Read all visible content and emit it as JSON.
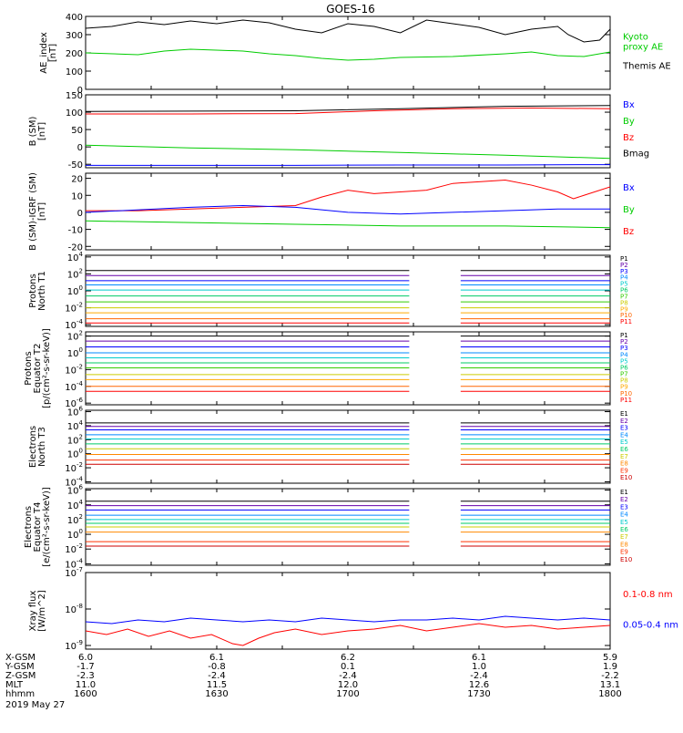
{
  "title": "GOES-16",
  "date_label": "2019 May 27",
  "ephemeris": {
    "rows": [
      {
        "label": "X-GSM",
        "values": [
          "6.0",
          "6.1",
          "6.2",
          "6.1",
          "5.9"
        ]
      },
      {
        "label": "Y-GSM",
        "values": [
          "-1.7",
          "-0.8",
          "0.1",
          "1.0",
          "1.9"
        ]
      },
      {
        "label": "Z-GSM",
        "values": [
          "-2.3",
          "-2.4",
          "-2.4",
          "-2.4",
          "-2.2"
        ]
      },
      {
        "label": "MLT",
        "values": [
          "11.0",
          "11.5",
          "12.0",
          "12.6",
          "13.1"
        ]
      },
      {
        "label": "hhmm",
        "values": [
          "1600",
          "1630",
          "1700",
          "1730",
          "1800"
        ]
      }
    ]
  },
  "chart_data": [
    {
      "type": "line",
      "ylabel": [
        "AE_index",
        "[nT]"
      ],
      "ylim": [
        0,
        400
      ],
      "yscale": "linear",
      "yticks": [
        "0",
        "100",
        "200",
        "300",
        "400"
      ],
      "legend": [
        {
          "text": "Kyoto proxy AE",
          "lines": [
            "Kyoto",
            "proxy AE"
          ],
          "color": "#00cc00"
        },
        {
          "text": "Themis AE",
          "lines": [
            "Themis AE"
          ],
          "color": "#000000"
        }
      ],
      "series": [
        {
          "name": "Themis AE",
          "color": "#000000",
          "x": [
            0,
            0.05,
            0.1,
            0.15,
            0.2,
            0.25,
            0.3,
            0.35,
            0.4,
            0.45,
            0.5,
            0.55,
            0.6,
            0.65,
            0.7,
            0.75,
            0.8,
            0.85,
            0.9,
            0.92,
            0.95,
            0.98,
            1.0
          ],
          "y": [
            335,
            345,
            370,
            355,
            375,
            360,
            380,
            365,
            330,
            310,
            360,
            345,
            310,
            380,
            360,
            340,
            300,
            330,
            345,
            300,
            260,
            270,
            330
          ]
        },
        {
          "name": "Kyoto proxy AE",
          "color": "#00cc00",
          "x": [
            0,
            0.1,
            0.15,
            0.2,
            0.3,
            0.35,
            0.4,
            0.45,
            0.5,
            0.55,
            0.6,
            0.7,
            0.8,
            0.85,
            0.9,
            0.95,
            1.0
          ],
          "y": [
            200,
            190,
            210,
            220,
            210,
            195,
            185,
            170,
            160,
            165,
            175,
            180,
            195,
            205,
            185,
            180,
            205
          ]
        }
      ]
    },
    {
      "type": "line",
      "ylabel": [
        "B (SM)",
        "[nT]"
      ],
      "ylim": [
        -60,
        150
      ],
      "yscale": "linear",
      "yticks": [
        "-50",
        "0",
        "50",
        "100",
        "150"
      ],
      "legend": [
        {
          "text": "Bx",
          "lines": [
            "Bx"
          ],
          "color": "#0000ff"
        },
        {
          "text": "By",
          "lines": [
            "By"
          ],
          "color": "#00cc00"
        },
        {
          "text": "Bz",
          "lines": [
            "Bz"
          ],
          "color": "#ff0000"
        },
        {
          "text": "Bmag",
          "lines": [
            "Bmag"
          ],
          "color": "#000000"
        }
      ],
      "series": [
        {
          "name": "Bmag",
          "color": "#000000",
          "x": [
            0,
            0.2,
            0.4,
            0.6,
            0.8,
            1.0
          ],
          "y": [
            102,
            103,
            104,
            110,
            117,
            119
          ]
        },
        {
          "name": "Bz",
          "color": "#ff0000",
          "x": [
            0,
            0.2,
            0.4,
            0.55,
            0.7,
            0.85,
            1.0
          ],
          "y": [
            95,
            95,
            96,
            104,
            110,
            112,
            110
          ]
        },
        {
          "name": "By",
          "color": "#00cc00",
          "x": [
            0,
            0.2,
            0.4,
            0.6,
            0.8,
            1.0
          ],
          "y": [
            5,
            -3,
            -8,
            -16,
            -24,
            -33
          ]
        },
        {
          "name": "Bx",
          "color": "#0000ff",
          "x": [
            0,
            0.2,
            0.4,
            0.6,
            0.8,
            1.0
          ],
          "y": [
            -53,
            -53,
            -53,
            -52,
            -52,
            -51
          ]
        }
      ]
    },
    {
      "type": "line",
      "ylabel": [
        "B (SM)-IGRF (SM)",
        "[nT]"
      ],
      "ylim": [
        -22,
        23
      ],
      "yscale": "linear",
      "yticks": [
        "-20",
        "-10",
        "0",
        "10",
        "20"
      ],
      "legend": [
        {
          "text": "Bx",
          "lines": [
            "Bx"
          ],
          "color": "#0000ff"
        },
        {
          "text": "By",
          "lines": [
            "By"
          ],
          "color": "#00cc00"
        },
        {
          "text": "Bz",
          "lines": [
            "Bz"
          ],
          "color": "#ff0000"
        }
      ],
      "series": [
        {
          "name": "Bz",
          "color": "#ff0000",
          "x": [
            0,
            0.1,
            0.2,
            0.3,
            0.4,
            0.45,
            0.5,
            0.55,
            0.6,
            0.65,
            0.7,
            0.75,
            0.8,
            0.85,
            0.9,
            0.93,
            0.95,
            1.0
          ],
          "y": [
            1,
            1,
            2,
            3,
            4,
            9,
            13,
            11,
            12,
            13,
            17,
            18,
            19,
            16,
            12,
            8,
            10,
            15
          ]
        },
        {
          "name": "Bx",
          "color": "#0000ff",
          "x": [
            0,
            0.2,
            0.3,
            0.4,
            0.5,
            0.6,
            0.7,
            0.8,
            0.9,
            1.0
          ],
          "y": [
            0,
            3,
            4,
            3,
            0,
            -1,
            0,
            1,
            2,
            2
          ]
        },
        {
          "name": "By",
          "color": "#00cc00",
          "x": [
            0,
            0.2,
            0.4,
            0.6,
            0.8,
            1.0
          ],
          "y": [
            -5,
            -6,
            -7,
            -8,
            -8,
            -9
          ]
        }
      ]
    },
    {
      "type": "line",
      "ylabel": [
        "Protons",
        "North T1"
      ],
      "ylim": [
        -4.2,
        4.2
      ],
      "yscale": "log10",
      "yticks": [
        {
          "m": "10",
          "e": "-4"
        },
        {
          "m": "10",
          "e": "-2"
        },
        {
          "m": "10",
          "e": "0"
        },
        {
          "m": "10",
          "e": "2"
        },
        {
          "m": "10",
          "e": "4"
        }
      ],
      "gap": [
        0.617,
        0.715
      ],
      "legend_small": [
        "P1",
        "P2",
        "P3",
        "P4",
        "P5",
        "P6",
        "P7",
        "P8",
        "P9",
        "P10",
        "P11"
      ],
      "legend_colors": [
        "#000000",
        "#6600aa",
        "#0000ff",
        "#0088ff",
        "#00cccc",
        "#00cc66",
        "#33cc00",
        "#cccc00",
        "#ffaa00",
        "#ff6600",
        "#ff0000"
      ],
      "series_levels": [
        2.4,
        1.8,
        1.2,
        0.7,
        0.1,
        -0.6,
        -1.3,
        -2.0,
        -2.6,
        -3.3,
        -3.8
      ]
    },
    {
      "type": "line",
      "ylabel": [
        "Protons",
        "Equator T2",
        "[p/(cm²-s-sr-keV)]"
      ],
      "ylim": [
        -6.2,
        2.5
      ],
      "yscale": "log10",
      "yticks": [
        {
          "m": "10",
          "e": "-6"
        },
        {
          "m": "10",
          "e": "-4"
        },
        {
          "m": "10",
          "e": "-2"
        },
        {
          "m": "10",
          "e": "0"
        },
        {
          "m": "10",
          "e": "2"
        }
      ],
      "gap": [
        0.617,
        0.715
      ],
      "legend_small": [
        "P1",
        "P2",
        "P3",
        "P4",
        "P5",
        "P6",
        "P7",
        "P8",
        "P9",
        "P10",
        "P11"
      ],
      "legend_colors": [
        "#000000",
        "#6600aa",
        "#0000ff",
        "#0088ff",
        "#00cccc",
        "#00cc66",
        "#33cc00",
        "#cccc00",
        "#ffaa00",
        "#ff6600",
        "#ff0000"
      ],
      "series_levels": [
        2.0,
        1.4,
        0.7,
        0.0,
        -0.6,
        -1.2,
        -1.8,
        -2.6,
        -3.2,
        -4.0,
        -4.6
      ]
    },
    {
      "type": "line",
      "ylabel": [
        "Electrons",
        "North T3"
      ],
      "ylim": [
        -4.2,
        6.2
      ],
      "yscale": "log10",
      "yticks": [
        {
          "m": "10",
          "e": "-4"
        },
        {
          "m": "10",
          "e": "-2"
        },
        {
          "m": "10",
          "e": "0"
        },
        {
          "m": "10",
          "e": "2"
        },
        {
          "m": "10",
          "e": "4"
        },
        {
          "m": "10",
          "e": "6"
        }
      ],
      "gap": [
        0.617,
        0.715
      ],
      "legend_small": [
        "E1",
        "E2",
        "E3",
        "E4",
        "E5",
        "E6",
        "E7",
        "E8",
        "E9",
        "E10"
      ],
      "legend_colors": [
        "#000000",
        "#6600aa",
        "#0000ff",
        "#0088ff",
        "#00cccc",
        "#00cc66",
        "#cccc00",
        "#ff8800",
        "#ff3300",
        "#cc0000"
      ],
      "series_levels": [
        4.4,
        3.9,
        3.4,
        2.7,
        2.1,
        1.4,
        0.7,
        -0.1,
        -0.9,
        -1.5
      ]
    },
    {
      "type": "line",
      "ylabel": [
        "Electrons",
        "Equator T4",
        "[e/(cm²-s-sr-keV)]"
      ],
      "ylim": [
        -4.2,
        6.2
      ],
      "yscale": "log10",
      "yticks": [
        {
          "m": "10",
          "e": "-4"
        },
        {
          "m": "10",
          "e": "-2"
        },
        {
          "m": "10",
          "e": "0"
        },
        {
          "m": "10",
          "e": "2"
        },
        {
          "m": "10",
          "e": "4"
        },
        {
          "m": "10",
          "e": "6"
        }
      ],
      "gap": [
        0.617,
        0.715
      ],
      "legend_small": [
        "E1",
        "E2",
        "E3",
        "E4",
        "E5",
        "E6",
        "E7",
        "E8",
        "E9",
        "E10"
      ],
      "legend_colors": [
        "#000000",
        "#6600aa",
        "#0000ff",
        "#0088ff",
        "#00cccc",
        "#00cc66",
        "#cccc00",
        "#ff8800",
        "#ff3300",
        "#cc0000"
      ],
      "series_levels": [
        4.5,
        3.9,
        3.3,
        2.6,
        2.0,
        1.5,
        1.0,
        0.3,
        -1.0,
        -1.6
      ]
    },
    {
      "type": "line",
      "ylabel": [
        "Xray flux",
        "[W/m^2]"
      ],
      "ylim": [
        -9.1,
        -7.0
      ],
      "yscale": "log10",
      "yticks": [
        {
          "m": "10",
          "e": "-9"
        },
        {
          "m": "10",
          "e": "-8"
        },
        {
          "m": "10",
          "e": "-7"
        }
      ],
      "legend": [
        {
          "text": "0.1-0.8 nm",
          "lines": [
            "0.1-0.8 nm"
          ],
          "color": "#ff0000"
        },
        {
          "text": "0.05-0.4 nm",
          "lines": [
            "0.05-0.4 nm"
          ],
          "color": "#0000ff"
        }
      ],
      "series": [
        {
          "name": "0.05-0.4 nm",
          "color": "#0000ff",
          "x": [
            0,
            0.05,
            0.1,
            0.15,
            0.2,
            0.25,
            0.3,
            0.35,
            0.4,
            0.45,
            0.5,
            0.55,
            0.6,
            0.65,
            0.7,
            0.75,
            0.8,
            0.85,
            0.9,
            0.95,
            1.0
          ],
          "y": [
            -8.35,
            -8.4,
            -8.3,
            -8.35,
            -8.25,
            -8.3,
            -8.35,
            -8.3,
            -8.35,
            -8.25,
            -8.3,
            -8.35,
            -8.3,
            -8.3,
            -8.25,
            -8.3,
            -8.2,
            -8.25,
            -8.3,
            -8.25,
            -8.3
          ]
        },
        {
          "name": "0.1-0.8 nm",
          "color": "#ff0000",
          "x": [
            0,
            0.04,
            0.08,
            0.12,
            0.16,
            0.2,
            0.24,
            0.28,
            0.3,
            0.33,
            0.36,
            0.4,
            0.45,
            0.5,
            0.55,
            0.6,
            0.65,
            0.7,
            0.75,
            0.8,
            0.85,
            0.9,
            0.95,
            1.0
          ],
          "y": [
            -8.6,
            -8.7,
            -8.55,
            -8.75,
            -8.6,
            -8.8,
            -8.7,
            -8.95,
            -9.0,
            -8.8,
            -8.65,
            -8.55,
            -8.7,
            -8.6,
            -8.55,
            -8.45,
            -8.6,
            -8.5,
            -8.4,
            -8.5,
            -8.45,
            -8.55,
            -8.5,
            -8.45
          ]
        }
      ]
    }
  ]
}
